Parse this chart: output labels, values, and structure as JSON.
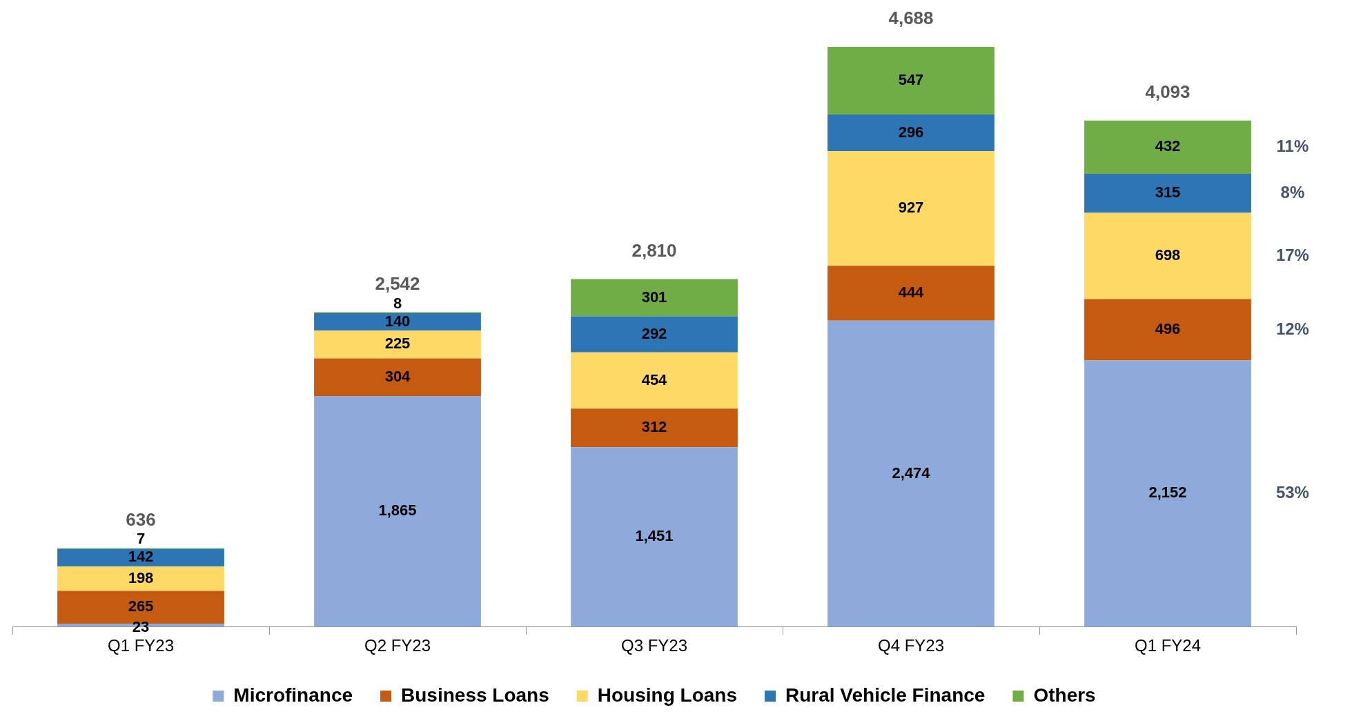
{
  "chart_data": {
    "type": "bar",
    "stacked": true,
    "categories": [
      "Q1 FY23",
      "Q2 FY23",
      "Q3 FY23",
      "Q4 FY23",
      "Q1 FY24"
    ],
    "series": [
      {
        "name": "Microfinance",
        "color": "#8eaadb",
        "values": [
          23,
          1865,
          1451,
          2474,
          2152
        ],
        "value_labels": [
          "23",
          "1,865",
          "1,451",
          "2,474",
          "2,152"
        ]
      },
      {
        "name": "Business Loans",
        "color": "#c55a11",
        "values": [
          265,
          304,
          312,
          444,
          496
        ],
        "value_labels": [
          "265",
          "304",
          "312",
          "444",
          "496"
        ]
      },
      {
        "name": "Housing Loans",
        "color": "#ffd966",
        "values": [
          198,
          225,
          454,
          927,
          698
        ],
        "value_labels": [
          "198",
          "225",
          "454",
          "927",
          "698"
        ]
      },
      {
        "name": "Rural Vehicle Finance",
        "color": "#2e75b6",
        "values": [
          142,
          140,
          292,
          296,
          315
        ],
        "value_labels": [
          "142",
          "140",
          "292",
          "296",
          "315"
        ]
      },
      {
        "name": "Others",
        "color": "#70ad47",
        "values": [
          7,
          8,
          301,
          547,
          432
        ],
        "value_labels": [
          "7",
          "8",
          "301",
          "547",
          "432"
        ]
      }
    ],
    "totals": [
      "636",
      "2,542",
      "2,810",
      "4,688",
      "4,093"
    ],
    "annotations": [
      "53%",
      "12%",
      "17%",
      "8%",
      "11%"
    ],
    "legend": "bottom"
  }
}
